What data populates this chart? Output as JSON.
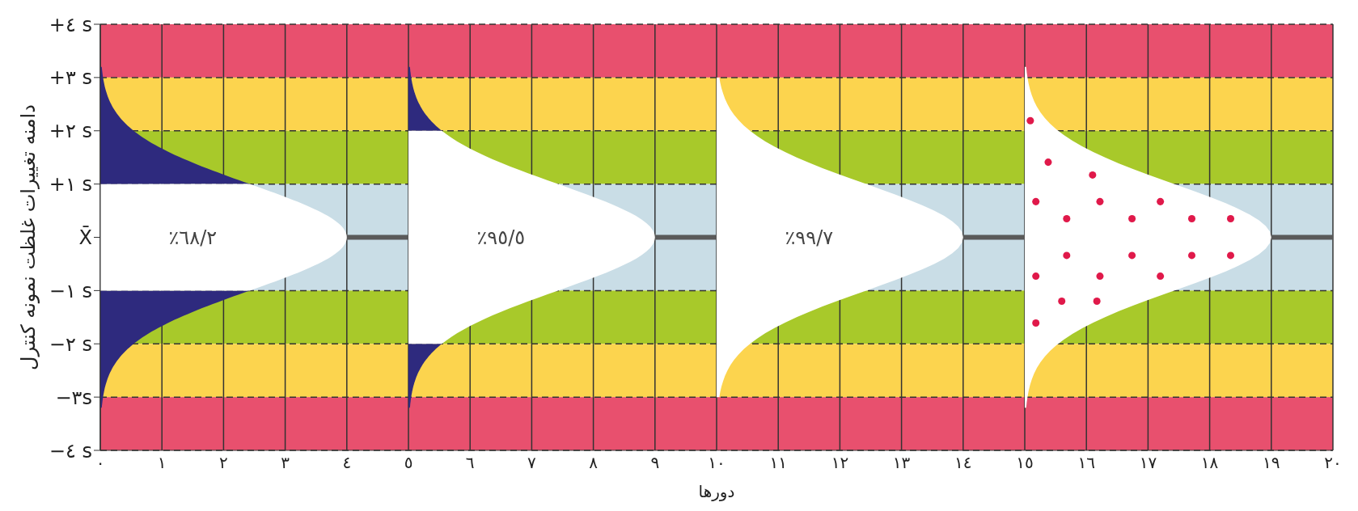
{
  "chart_data": {
    "type": "scatter",
    "xlabel": "دورها",
    "ylabel": "دامنه تغییرات غلظت نمونه کنترل",
    "x": [
      15.09,
      15.38,
      16.1,
      15.18,
      16.22,
      17.2,
      15.68,
      16.74,
      17.71,
      18.34,
      15.68,
      16.74,
      17.71,
      18.34,
      15.18,
      16.22,
      17.2,
      15.6,
      16.17,
      15.18
    ],
    "values": [
      2.19,
      1.41,
      1.17,
      0.67,
      0.67,
      0.67,
      0.35,
      0.35,
      0.35,
      0.35,
      -0.34,
      -0.34,
      -0.34,
      -0.34,
      -0.73,
      -0.73,
      -0.73,
      -1.2,
      -1.2,
      -1.61
    ],
    "color": "#e0194a",
    "marker": "circle",
    "xlim": [
      0,
      20
    ],
    "xticks": [
      {
        "value": 0,
        "label": "٠"
      },
      {
        "value": 1,
        "label": "١"
      },
      {
        "value": 2,
        "label": "٢"
      },
      {
        "value": 3,
        "label": "٣"
      },
      {
        "value": 4,
        "label": "٤"
      },
      {
        "value": 5,
        "label": "٥"
      },
      {
        "value": 6,
        "label": "٦"
      },
      {
        "value": 7,
        "label": "٧"
      },
      {
        "value": 8,
        "label": "٨"
      },
      {
        "value": 9,
        "label": "٩"
      },
      {
        "value": 10,
        "label": "١٠"
      },
      {
        "value": 11,
        "label": "١١"
      },
      {
        "value": 12,
        "label": "١٢"
      },
      {
        "value": 13,
        "label": "١٣"
      },
      {
        "value": 14,
        "label": "١٤"
      },
      {
        "value": 15,
        "label": "١٥"
      },
      {
        "value": 16,
        "label": "١٦"
      },
      {
        "value": 17,
        "label": "١٧"
      },
      {
        "value": 18,
        "label": "١٨"
      },
      {
        "value": 19,
        "label": "١٩"
      },
      {
        "value": 20,
        "label": "٢٠"
      }
    ],
    "ylim": [
      -4,
      4
    ],
    "yticks": [
      {
        "value": -4,
        "label": "−٤ s"
      },
      {
        "value": -3,
        "label": "−٣s"
      },
      {
        "value": -2,
        "label": "−٢ s"
      },
      {
        "value": -1,
        "label": "−١ s"
      },
      {
        "value": 0,
        "label": "X̄"
      },
      {
        "value": 1,
        "label": "+١ s"
      },
      {
        "value": 2,
        "label": "+٢ s"
      },
      {
        "value": 3,
        "label": "+٣ s"
      },
      {
        "value": 4,
        "label": "+٤ s"
      }
    ],
    "grid": true,
    "bands": [
      {
        "axis": "y",
        "from": 3,
        "to": 4,
        "color": "#e8506e"
      },
      {
        "axis": "y",
        "from": 2,
        "to": 3,
        "color": "#fcd44e"
      },
      {
        "axis": "y",
        "from": 1,
        "to": 2,
        "color": "#a8c92a"
      },
      {
        "axis": "y",
        "from": -1,
        "to": 1,
        "color": "#c9dde6"
      },
      {
        "axis": "y",
        "from": -2,
        "to": -1,
        "color": "#a8c92a"
      },
      {
        "axis": "y",
        "from": -3,
        "to": -2,
        "color": "#fcd44e"
      },
      {
        "axis": "y",
        "from": -4,
        "to": -3,
        "color": "#e8506e"
      }
    ],
    "ref_lines": [
      {
        "axis": "y",
        "value": 0,
        "color": "#5a5a5a"
      }
    ],
    "annotations": [
      "٪٦٨/٢",
      "٪٩٥/٥",
      "٪٩٩/٧"
    ]
  }
}
